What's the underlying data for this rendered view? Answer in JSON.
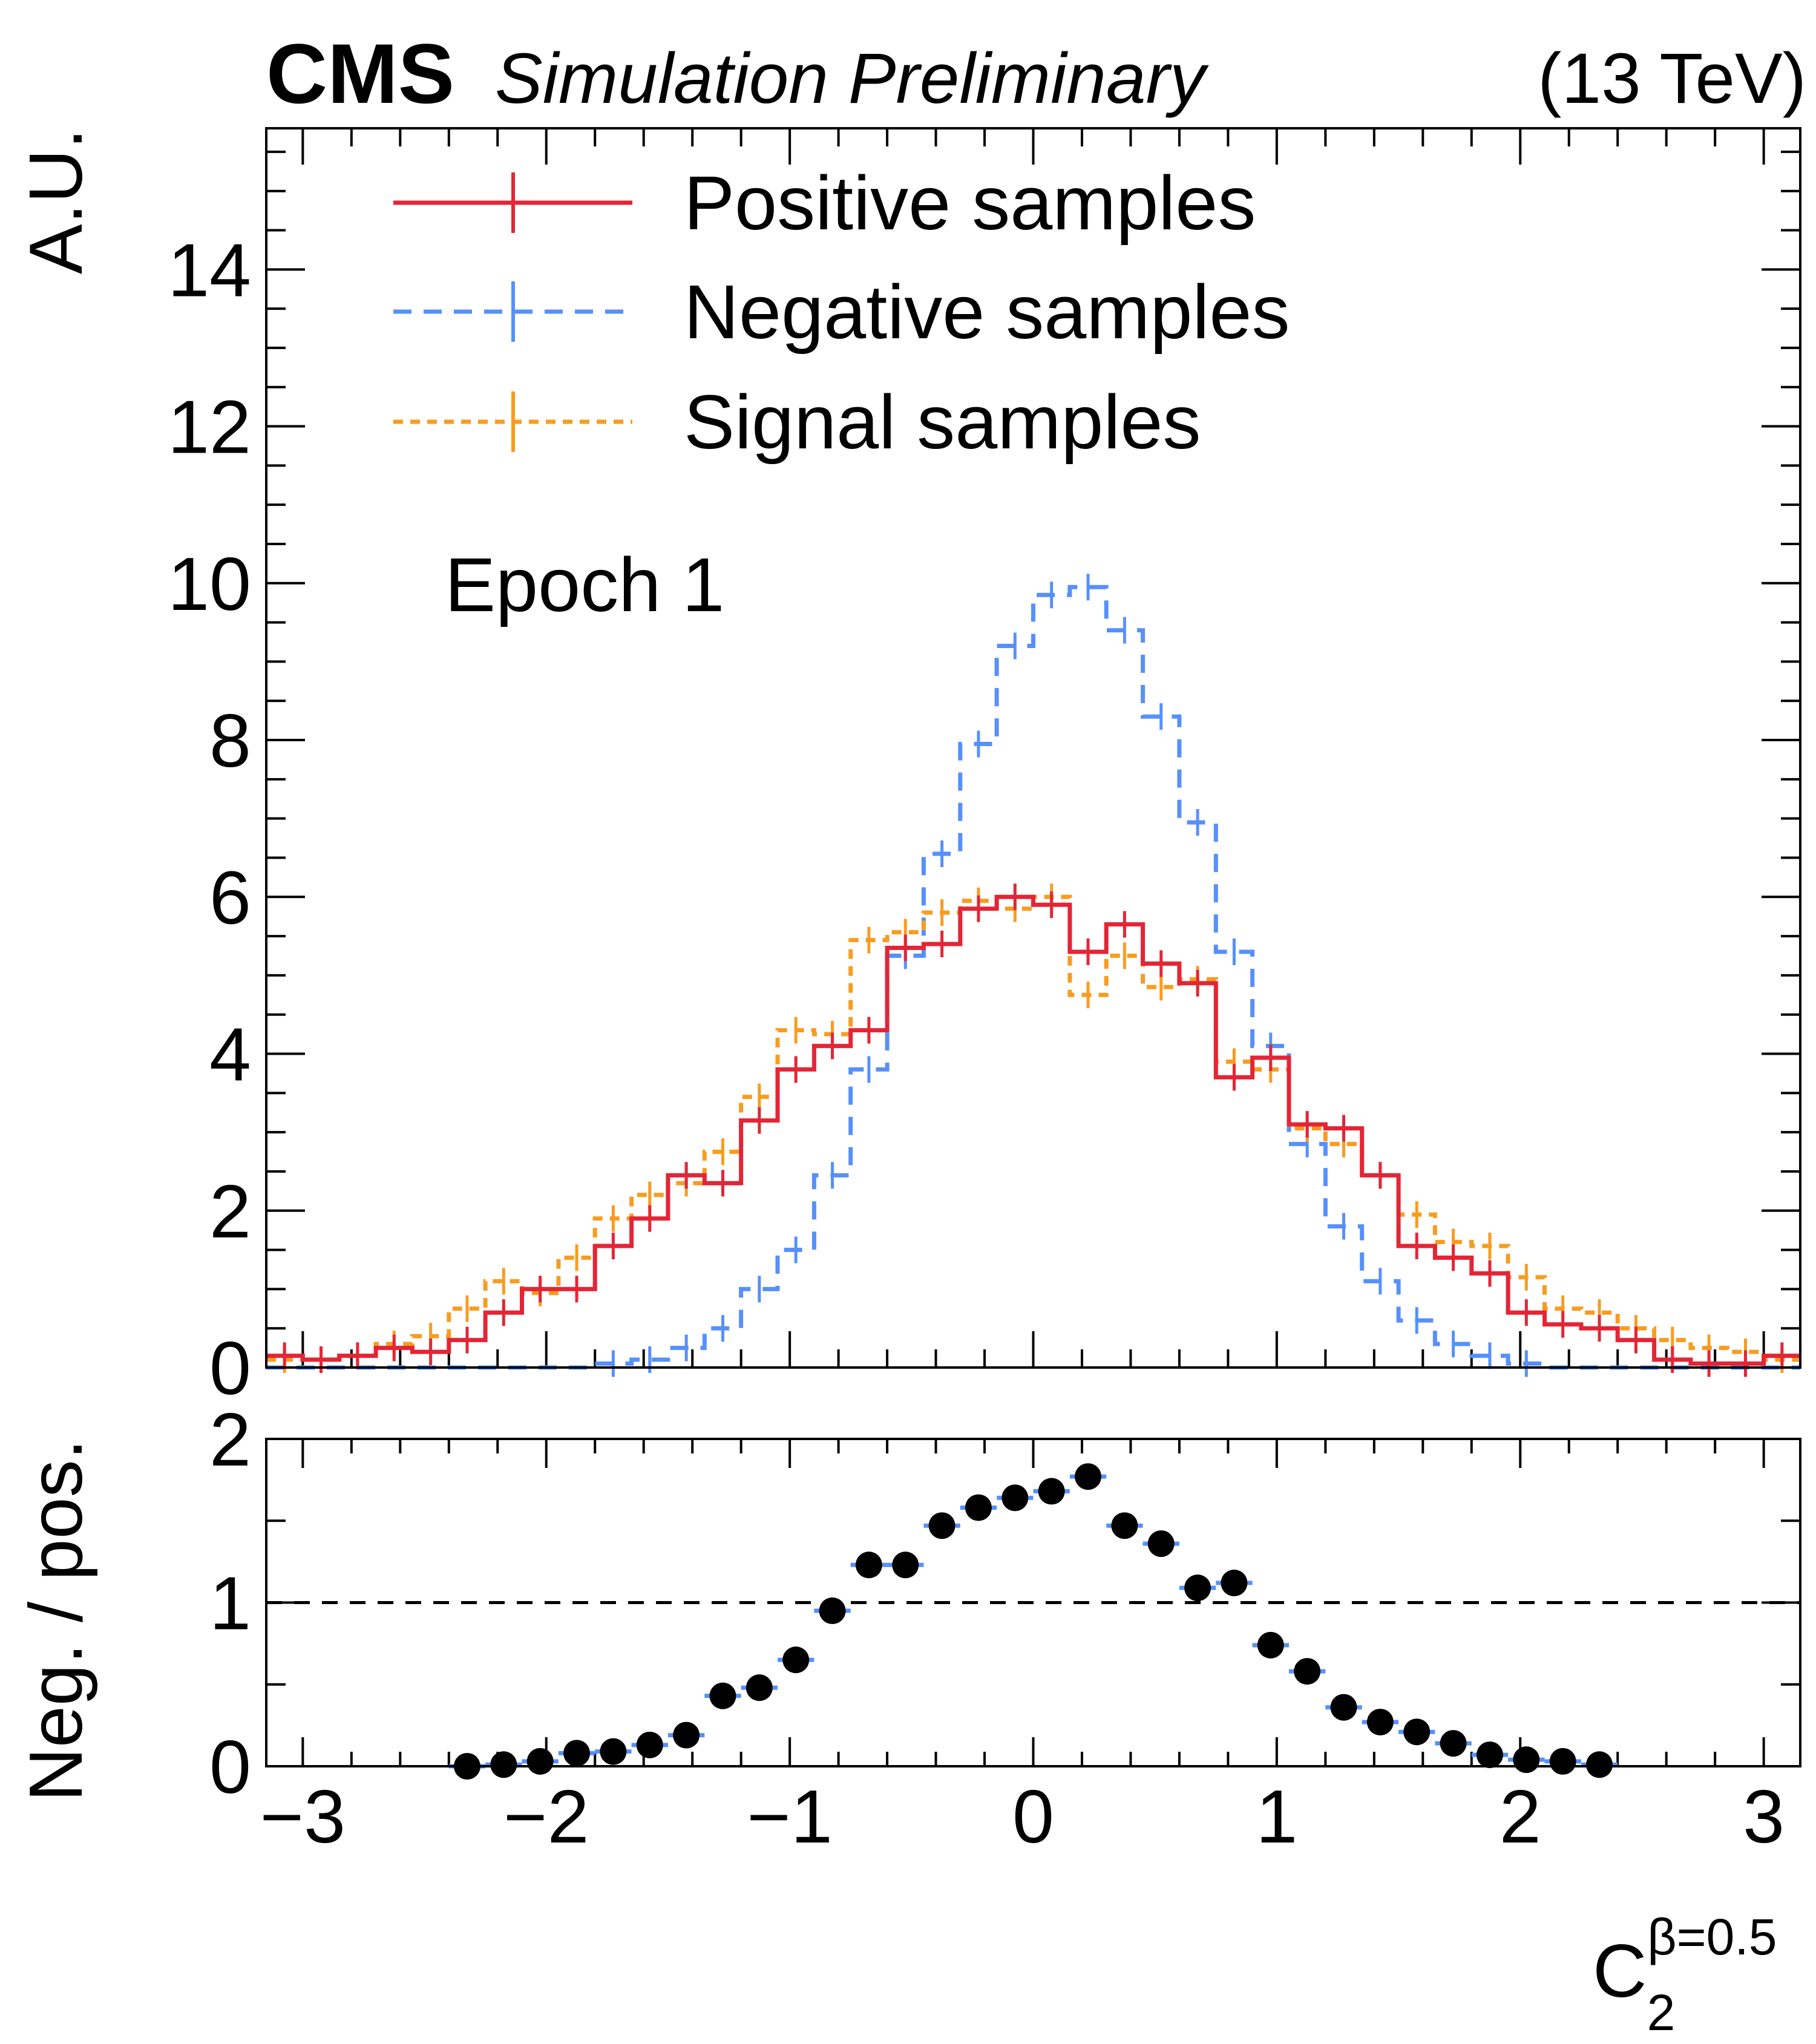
{
  "header": {
    "experiment": "CMS",
    "status": "Simulation Preliminary",
    "energy": "(13 TeV)"
  },
  "annotation": "Epoch 1",
  "chart_data": [
    {
      "type": "histogram",
      "title": "",
      "ylabel": "A.U.",
      "xlabel": "",
      "xlim": [
        -3.15,
        3.15
      ],
      "ylim": [
        0,
        15.8
      ],
      "yticks": [
        0,
        2,
        4,
        6,
        8,
        10,
        12,
        14
      ],
      "bin_edges": [
        -3.15,
        -3.0,
        -2.85,
        -2.7,
        -2.55,
        -2.4,
        -2.25,
        -2.1,
        -1.95,
        -1.8,
        -1.65,
        -1.5,
        -1.35,
        -1.2,
        -1.05,
        -0.9,
        -0.75,
        -0.6,
        -0.45,
        -0.3,
        -0.15,
        0.0,
        0.15,
        0.3,
        0.45,
        0.6,
        0.75,
        0.9,
        1.05,
        1.2,
        1.35,
        1.5,
        1.65,
        1.8,
        1.95,
        2.1,
        2.25,
        2.4,
        2.55,
        2.7,
        2.85,
        3.0,
        3.15
      ],
      "legend_position": "top-left",
      "series": [
        {
          "name": "Positive samples",
          "color": "#e42536",
          "style": "solid",
          "values": [
            0.15,
            0.1,
            0.15,
            0.25,
            0.2,
            0.35,
            0.7,
            1.0,
            1.0,
            1.55,
            1.9,
            2.45,
            2.35,
            3.15,
            3.8,
            4.1,
            4.3,
            5.35,
            5.4,
            5.85,
            6.0,
            5.9,
            5.3,
            5.65,
            5.15,
            4.9,
            3.7,
            3.95,
            3.1,
            3.05,
            2.45,
            1.55,
            1.4,
            1.2,
            0.7,
            0.55,
            0.5,
            0.35,
            0.1,
            0.05,
            0.05,
            0.15
          ]
        },
        {
          "name": "Negative samples",
          "color": "#5790fc",
          "style": "dashed",
          "values": [
            0.0,
            0.0,
            0.0,
            0.0,
            0.0,
            0.0,
            0.0,
            0.0,
            0.0,
            0.05,
            0.1,
            0.25,
            0.5,
            1.0,
            1.5,
            2.45,
            3.8,
            5.25,
            6.55,
            7.95,
            9.2,
            9.85,
            9.95,
            9.4,
            8.3,
            6.95,
            5.3,
            4.1,
            2.85,
            1.8,
            1.1,
            0.6,
            0.3,
            0.15,
            0.05,
            0.0,
            0.0,
            0.0,
            0.0,
            0.0,
            0.0,
            0.0
          ]
        },
        {
          "name": "Signal samples",
          "color": "#f89c20",
          "style": "dotted",
          "values": [
            0.1,
            0.1,
            0.15,
            0.3,
            0.4,
            0.75,
            1.1,
            0.95,
            1.4,
            1.9,
            2.2,
            2.35,
            2.75,
            3.45,
            4.3,
            4.25,
            5.45,
            5.55,
            5.8,
            5.95,
            5.85,
            6.0,
            4.75,
            5.25,
            4.85,
            4.95,
            3.9,
            3.8,
            3.05,
            2.85,
            2.45,
            1.95,
            1.6,
            1.55,
            1.15,
            0.75,
            0.7,
            0.5,
            0.35,
            0.25,
            0.2,
            0.1
          ]
        }
      ]
    },
    {
      "type": "scatter",
      "ylabel": "Neg. / pos.",
      "xlabel": "C_2^{β=0.5}",
      "xlabel_base": "C",
      "xlabel_sub": "2",
      "xlabel_sup": "β=0.5",
      "xlim": [
        -3.15,
        3.15
      ],
      "ylim": [
        0,
        2
      ],
      "yticks": [
        0,
        1,
        2
      ],
      "xticks": [
        "−3",
        "−2",
        "−1",
        "0",
        "1",
        "2",
        "3"
      ],
      "reference_line": 1,
      "half_bin_width": 0.075,
      "x": [
        -2.325,
        -2.175,
        -2.025,
        -1.875,
        -1.725,
        -1.575,
        -1.425,
        -1.275,
        -1.125,
        -0.975,
        -0.825,
        -0.675,
        -0.525,
        -0.375,
        -0.225,
        -0.075,
        0.075,
        0.225,
        0.375,
        0.525,
        0.675,
        0.825,
        0.975,
        1.125,
        1.275,
        1.425,
        1.575,
        1.725,
        1.875,
        2.025,
        2.175,
        2.325
      ],
      "y": [
        0.0,
        0.01,
        0.03,
        0.08,
        0.09,
        0.13,
        0.19,
        0.43,
        0.48,
        0.65,
        0.95,
        1.23,
        1.23,
        1.47,
        1.58,
        1.64,
        1.68,
        1.77,
        1.47,
        1.36,
        1.09,
        1.12,
        0.74,
        0.58,
        0.36,
        0.27,
        0.21,
        0.14,
        0.07,
        0.04,
        0.03,
        0.01
      ]
    }
  ]
}
